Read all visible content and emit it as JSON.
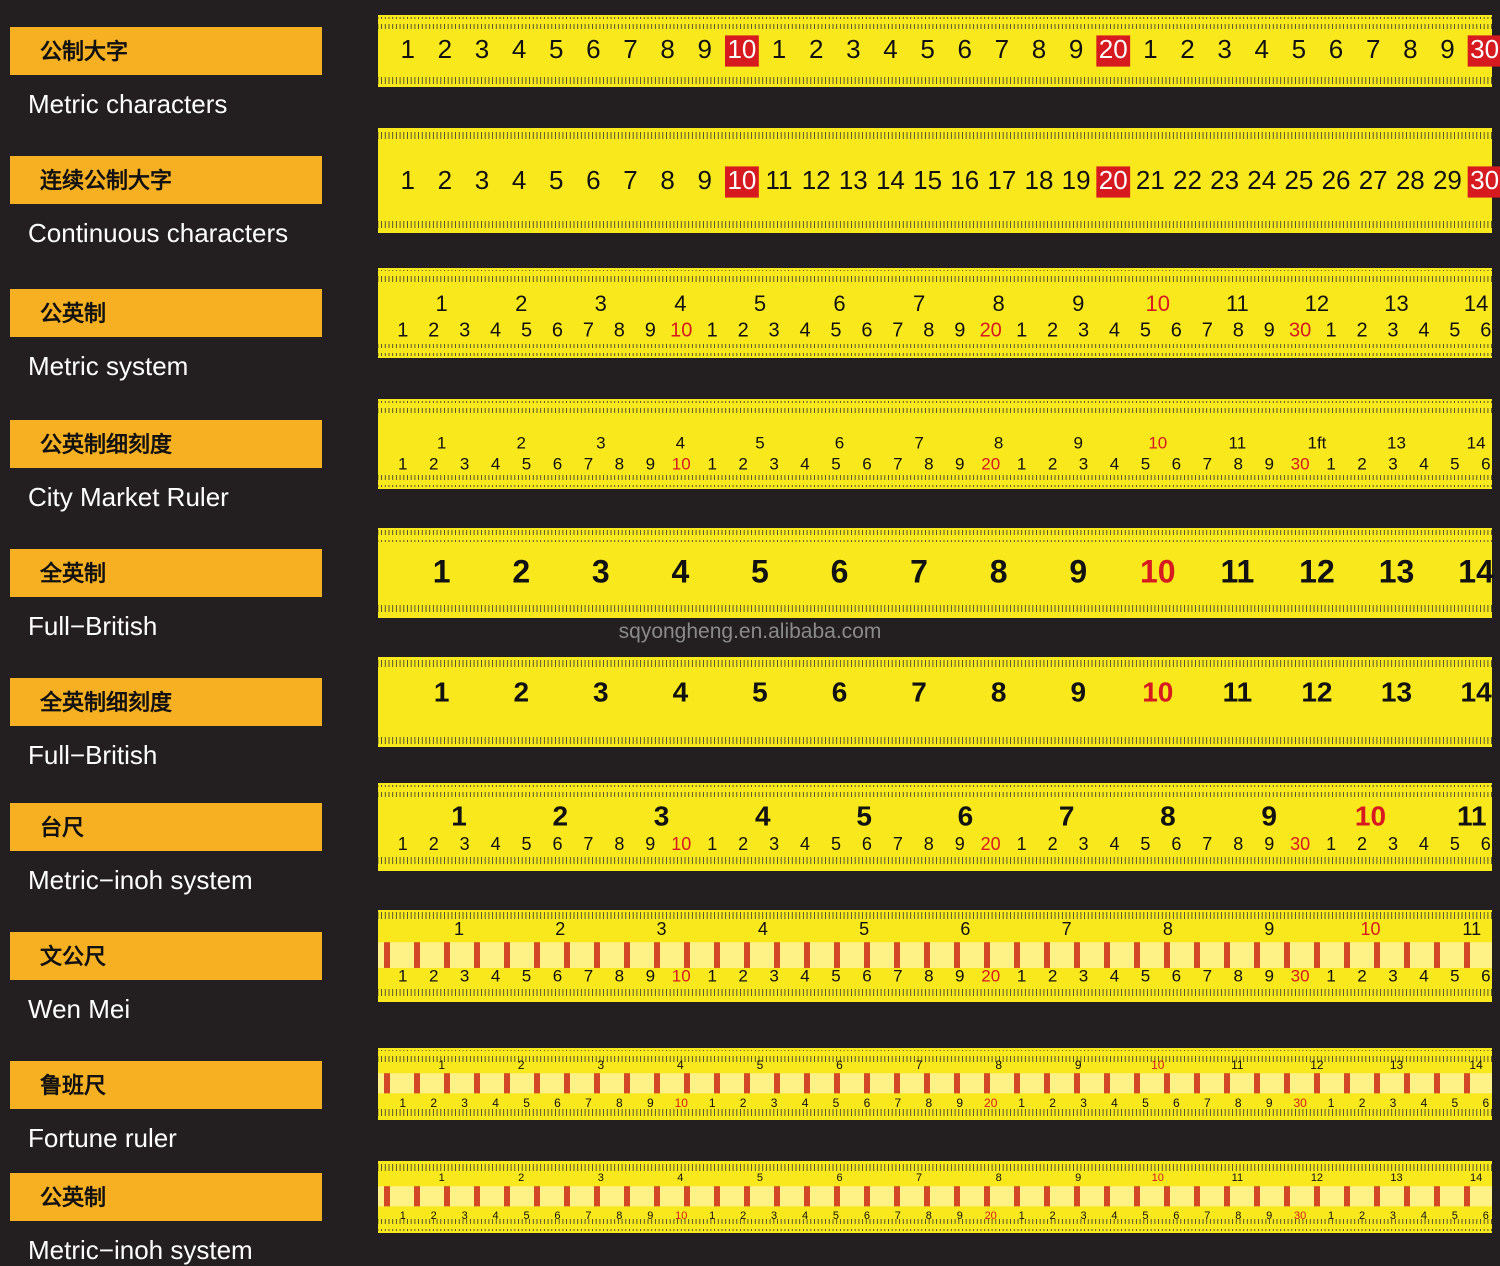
{
  "rows": [
    {
      "label_cn": "公制大字",
      "label_en": "Metric characters",
      "top": [
        "1",
        "2",
        "3",
        "4",
        "5",
        "6",
        "7",
        "8",
        "9",
        "10",
        "1",
        "2",
        "3",
        "4",
        "5",
        "6",
        "7",
        "8",
        "9",
        "20",
        "1",
        "2",
        "3",
        "4",
        "5",
        "6",
        "7",
        "8",
        "9",
        "30"
      ]
    },
    {
      "label_cn": "连续公制大字",
      "label_en": "Continuous  characters",
      "top": [
        "1",
        "2",
        "3",
        "4",
        "5",
        "6",
        "7",
        "8",
        "9",
        "10",
        "11",
        "12",
        "13",
        "14",
        "15",
        "16",
        "17",
        "18",
        "19",
        "20",
        "21",
        "22",
        "23",
        "24",
        "25",
        "26",
        "27",
        "28",
        "29",
        "30"
      ]
    },
    {
      "label_cn": "公英制",
      "label_en": "Metric system",
      "top": [
        "1",
        "2",
        "3",
        "4",
        "5",
        "6",
        "7",
        "8",
        "9",
        "10",
        "11",
        "12",
        "13",
        "14"
      ],
      "bottom": [
        "1",
        "2",
        "3",
        "4",
        "5",
        "6",
        "7",
        "8",
        "9",
        "10",
        "1",
        "2",
        "3",
        "4",
        "5",
        "6",
        "7",
        "8",
        "9",
        "20",
        "1",
        "2",
        "3",
        "4",
        "5",
        "6",
        "7",
        "8",
        "9",
        "30",
        "1",
        "2",
        "3",
        "4",
        "5",
        "6"
      ]
    },
    {
      "label_cn": "公英制细刻度",
      "label_en": "City Market Ruler",
      "top": [
        "1",
        "2",
        "3",
        "4",
        "5",
        "6",
        "7",
        "8",
        "9",
        "10",
        "11",
        "1ft",
        "13",
        "14"
      ],
      "bottom": [
        "1",
        "2",
        "3",
        "4",
        "5",
        "6",
        "7",
        "8",
        "9",
        "10",
        "1",
        "2",
        "3",
        "4",
        "5",
        "6",
        "7",
        "8",
        "9",
        "20",
        "1",
        "2",
        "3",
        "4",
        "5",
        "6",
        "7",
        "8",
        "9",
        "30",
        "1",
        "2",
        "3",
        "4",
        "5",
        "6"
      ]
    },
    {
      "label_cn": "全英制",
      "label_en": "Full−British",
      "top": [
        "1",
        "2",
        "3",
        "4",
        "5",
        "6",
        "7",
        "8",
        "9",
        "10",
        "11",
        "12",
        "13",
        "14"
      ]
    },
    {
      "label_cn": "全英制细刻度",
      "label_en": "Full−British",
      "top": [
        "1",
        "2",
        "3",
        "4",
        "5",
        "6",
        "7",
        "8",
        "9",
        "10",
        "11",
        "12",
        "13",
        "14"
      ]
    },
    {
      "label_cn": "台尺",
      "label_en": "Metric−inoh system",
      "top": [
        "1",
        "2",
        "3",
        "4",
        "5",
        "6",
        "7",
        "8",
        "9",
        "10",
        "11"
      ],
      "bottom": [
        "1",
        "2",
        "3",
        "4",
        "5",
        "6",
        "7",
        "8",
        "9",
        "10",
        "1",
        "2",
        "3",
        "4",
        "5",
        "6",
        "7",
        "8",
        "9",
        "20",
        "1",
        "2",
        "3",
        "4",
        "5",
        "6",
        "7",
        "8",
        "9",
        "30",
        "1",
        "2",
        "3",
        "4",
        "5",
        "6"
      ]
    },
    {
      "label_cn": "文公尺",
      "label_en": "Wen Mei",
      "top": [
        "1",
        "2",
        "3",
        "4",
        "5",
        "6",
        "7",
        "8",
        "9",
        "10",
        "11"
      ],
      "bottom": [
        "1",
        "2",
        "3",
        "4",
        "5",
        "6",
        "7",
        "8",
        "9",
        "10",
        "1",
        "2",
        "3",
        "4",
        "5",
        "6",
        "7",
        "8",
        "9",
        "20",
        "1",
        "2",
        "3",
        "4",
        "5",
        "6",
        "7",
        "8",
        "9",
        "30",
        "1",
        "2",
        "3",
        "4",
        "5",
        "6"
      ]
    },
    {
      "label_cn": "鲁班尺",
      "label_en": "Fortune ruler",
      "top": [
        "1",
        "2",
        "3",
        "4",
        "5",
        "6",
        "7",
        "8",
        "9",
        "10",
        "11",
        "12",
        "13",
        "14"
      ],
      "bottom": [
        "1",
        "2",
        "3",
        "4",
        "5",
        "6",
        "7",
        "8",
        "9",
        "10",
        "1",
        "2",
        "3",
        "4",
        "5",
        "6",
        "7",
        "8",
        "9",
        "20",
        "1",
        "2",
        "3",
        "4",
        "5",
        "6",
        "7",
        "8",
        "9",
        "30",
        "1",
        "2",
        "3",
        "4",
        "5",
        "6"
      ]
    },
    {
      "label_cn": "公英制",
      "label_en": "Metric−inoh system",
      "top": [
        "1",
        "2",
        "3",
        "4",
        "5",
        "6",
        "7",
        "8",
        "9",
        "10",
        "11",
        "12",
        "13",
        "14"
      ],
      "bottom": [
        "1",
        "2",
        "3",
        "4",
        "5",
        "6",
        "7",
        "8",
        "9",
        "10",
        "1",
        "2",
        "3",
        "4",
        "5",
        "6",
        "7",
        "8",
        "9",
        "20",
        "1",
        "2",
        "3",
        "4",
        "5",
        "6",
        "7",
        "8",
        "9",
        "30",
        "1",
        "2",
        "3",
        "4",
        "5",
        "6"
      ]
    }
  ],
  "watermark": "sqyongheng.en.alibaba.com"
}
